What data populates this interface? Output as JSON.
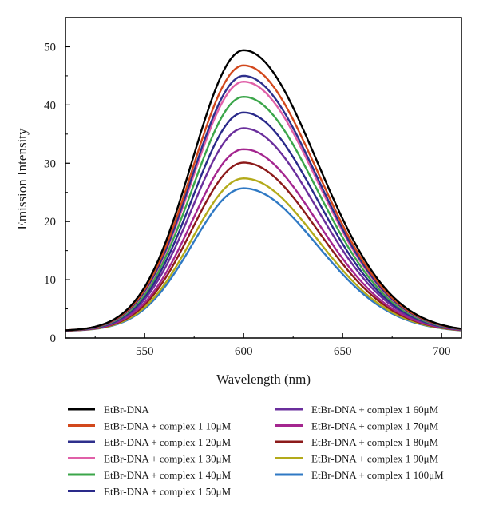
{
  "chart_data": {
    "type": "line",
    "title": "",
    "xlabel": "Wavelength (nm)",
    "ylabel": "Emission Intensity",
    "xlim": [
      510,
      710
    ],
    "ylim": [
      0,
      55
    ],
    "x_ticks": [
      550,
      600,
      650,
      700
    ],
    "y_ticks": [
      0,
      10,
      20,
      30,
      40,
      50
    ],
    "grid": false,
    "legend_position": "bottom",
    "peak_x": 600,
    "series": [
      {
        "name": "EtBr-DNA",
        "color": "#000000",
        "peak": 49.4
      },
      {
        "name": "EtBr-DNA + complex 1 10μM",
        "color": "#d2481c",
        "peak": 46.8
      },
      {
        "name": "EtBr-DNA + complex 1 20μM",
        "color": "#2e2f8c",
        "peak": 45.0
      },
      {
        "name": "EtBr-DNA + complex 1 30μM",
        "color": "#e060a8",
        "peak": 44.0
      },
      {
        "name": "EtBr-DNA + complex 1 40μM",
        "color": "#3ba64a",
        "peak": 41.4
      },
      {
        "name": "EtBr-DNA + complex 1 50μM",
        "color": "#2a2a8a",
        "peak": 38.7
      },
      {
        "name": "EtBr-DNA + complex 1 60μM",
        "color": "#6a2e9c",
        "peak": 36.0
      },
      {
        "name": "EtBr-DNA + complex 1 70μM",
        "color": "#a4268f",
        "peak": 32.4
      },
      {
        "name": "EtBr-DNA + complex 1 80μM",
        "color": "#8c1a1a",
        "peak": 30.1
      },
      {
        "name": "EtBr-DNA + complex 1 90μM",
        "color": "#b3aa1a",
        "peak": 27.4
      },
      {
        "name": "EtBr-DNA + complex 1 100μM",
        "color": "#2f79c4",
        "peak": 25.7
      }
    ]
  }
}
